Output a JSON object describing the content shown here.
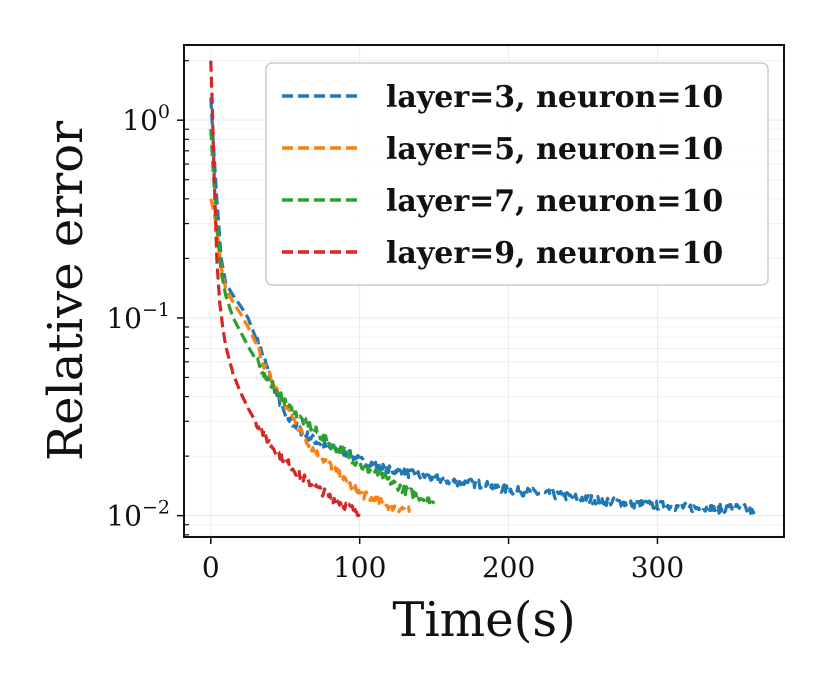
{
  "chart_data": {
    "type": "line",
    "title": "",
    "xlabel": "Time(s)",
    "ylabel": "Relative error",
    "xlim": [
      -18,
      385
    ],
    "ylim": [
      0.0078,
      2.4
    ],
    "yscale": "log",
    "grid": true,
    "legend_position": "top-right",
    "x_ticks": [
      {
        "value": 0,
        "label": "0"
      },
      {
        "value": 100,
        "label": "100"
      },
      {
        "value": 200,
        "label": "200"
      },
      {
        "value": 300,
        "label": "300"
      }
    ],
    "y_ticks": [
      {
        "value": 1,
        "base": "10",
        "exp": "0"
      },
      {
        "value": 0.1,
        "base": "10",
        "exp": "−1"
      },
      {
        "value": 0.01,
        "base": "10",
        "exp": "−2"
      }
    ],
    "series": [
      {
        "name": "layer=3, neuron=10",
        "legend_bold": "layer=3",
        "legend_rest": ", neuron=10",
        "color": "#1f77b4",
        "x": [
          0,
          2,
          4,
          7,
          10,
          15,
          20,
          25,
          30,
          35,
          40,
          45,
          50,
          60,
          70,
          80,
          90,
          100,
          120,
          140,
          160,
          180,
          200,
          220,
          240,
          260,
          280,
          300,
          320,
          340,
          350,
          360,
          365
        ],
        "y": [
          1.3,
          0.7,
          0.4,
          0.2,
          0.15,
          0.13,
          0.115,
          0.1,
          0.08,
          0.065,
          0.05,
          0.04,
          0.032,
          0.027,
          0.024,
          0.022,
          0.021,
          0.019,
          0.017,
          0.016,
          0.015,
          0.0145,
          0.0135,
          0.013,
          0.0125,
          0.012,
          0.0115,
          0.0113,
          0.011,
          0.0108,
          0.011,
          0.0108,
          0.0102
        ]
      },
      {
        "name": "layer=5, neuron=10",
        "legend_bold": "layer=5",
        "legend_rest": ", neuron=10",
        "color": "#ff7f0e",
        "x": [
          0,
          2,
          4,
          7,
          10,
          15,
          20,
          25,
          30,
          35,
          40,
          45,
          50,
          60,
          70,
          80,
          90,
          100,
          110,
          120,
          130,
          134
        ],
        "y": [
          0.4,
          0.35,
          0.28,
          0.18,
          0.14,
          0.12,
          0.105,
          0.09,
          0.075,
          0.06,
          0.05,
          0.042,
          0.036,
          0.027,
          0.021,
          0.018,
          0.015,
          0.013,
          0.012,
          0.0112,
          0.0108,
          0.0105
        ]
      },
      {
        "name": "layer=7, neuron=10",
        "legend_bold": "layer=7",
        "legend_rest": ", neuron=10",
        "color": "#2ca02c",
        "x": [
          0,
          2,
          4,
          7,
          10,
          15,
          20,
          25,
          30,
          35,
          40,
          45,
          50,
          60,
          70,
          80,
          90,
          100,
          110,
          120,
          130,
          140,
          150
        ],
        "y": [
          0.9,
          0.5,
          0.3,
          0.17,
          0.13,
          0.1,
          0.085,
          0.072,
          0.062,
          0.054,
          0.047,
          0.042,
          0.037,
          0.031,
          0.027,
          0.023,
          0.021,
          0.018,
          0.0165,
          0.015,
          0.0135,
          0.0125,
          0.0115
        ]
      },
      {
        "name": "layer=9, neuron=10",
        "legend_bold": "layer=9",
        "legend_rest": ", neuron=10",
        "color": "#d62728",
        "x": [
          0,
          1,
          2,
          4,
          6,
          8,
          10,
          15,
          20,
          25,
          30,
          40,
          50,
          60,
          70,
          80,
          90,
          100
        ],
        "y": [
          2.0,
          1.2,
          0.6,
          0.2,
          0.12,
          0.09,
          0.072,
          0.052,
          0.042,
          0.035,
          0.03,
          0.023,
          0.019,
          0.016,
          0.014,
          0.0125,
          0.0113,
          0.0104
        ]
      }
    ]
  }
}
